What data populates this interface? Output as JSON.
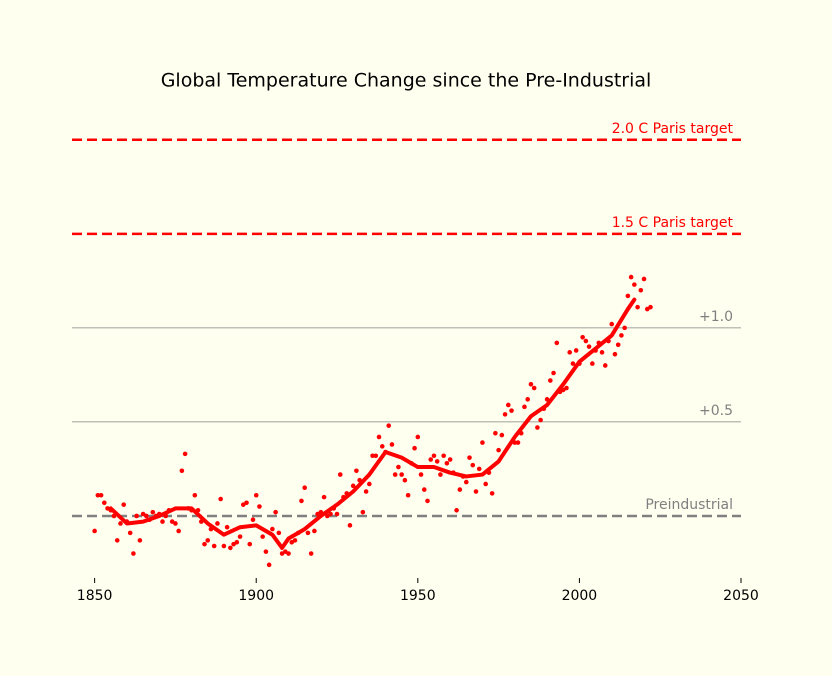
{
  "chart_data": {
    "type": "scatter",
    "title": "Global Temperature Change since the Pre-Industrial",
    "xlim": [
      1843,
      2050
    ],
    "ylim": [
      -0.33,
      2.1
    ],
    "xticks": [
      1850,
      1900,
      1950,
      2000,
      2050
    ],
    "reference_lines": [
      {
        "value": 0,
        "label": "Preindustrial",
        "color": "#808080",
        "dashed": true
      },
      {
        "value": 0.5,
        "label": "+0.5",
        "color": "#808080",
        "dashed": false
      },
      {
        "value": 1.0,
        "label": "+1.0",
        "color": "#808080",
        "dashed": false
      },
      {
        "value": 1.5,
        "label": "1.5 C Paris target",
        "color": "#ff0000",
        "dashed": true
      },
      {
        "value": 2.0,
        "label": "2.0 C Paris target",
        "color": "#ff0000",
        "dashed": true
      }
    ],
    "series": [
      {
        "type": "scatter",
        "color": "#ff0000",
        "x": [
          1850,
          1851,
          1852,
          1853,
          1854,
          1855,
          1856,
          1857,
          1858,
          1859,
          1860,
          1861,
          1862,
          1863,
          1864,
          1865,
          1866,
          1867,
          1868,
          1869,
          1870,
          1871,
          1872,
          1873,
          1874,
          1875,
          1876,
          1877,
          1878,
          1879,
          1880,
          1881,
          1882,
          1883,
          1884,
          1885,
          1886,
          1887,
          1888,
          1889,
          1890,
          1891,
          1892,
          1893,
          1894,
          1895,
          1896,
          1897,
          1898,
          1899,
          1900,
          1901,
          1902,
          1903,
          1904,
          1905,
          1906,
          1907,
          1908,
          1909,
          1910,
          1911,
          1912,
          1913,
          1914,
          1915,
          1916,
          1917,
          1918,
          1919,
          1920,
          1921,
          1922,
          1923,
          1924,
          1925,
          1926,
          1927,
          1928,
          1929,
          1930,
          1931,
          1932,
          1933,
          1934,
          1935,
          1936,
          1937,
          1938,
          1939,
          1940,
          1941,
          1942,
          1943,
          1944,
          1945,
          1946,
          1947,
          1948,
          1949,
          1950,
          1951,
          1952,
          1953,
          1954,
          1955,
          1956,
          1957,
          1958,
          1959,
          1960,
          1961,
          1962,
          1963,
          1964,
          1965,
          1966,
          1967,
          1968,
          1969,
          1970,
          1971,
          1972,
          1973,
          1974,
          1975,
          1976,
          1977,
          1978,
          1979,
          1980,
          1981,
          1982,
          1983,
          1984,
          1985,
          1986,
          1987,
          1988,
          1989,
          1990,
          1991,
          1992,
          1993,
          1994,
          1995,
          1996,
          1997,
          1998,
          1999,
          2000,
          2001,
          2002,
          2003,
          2004,
          2005,
          2006,
          2007,
          2008,
          2009,
          2010,
          2011,
          2012,
          2013,
          2014,
          2015,
          2016,
          2017,
          2018,
          2019,
          2020,
          2021,
          2022
        ],
        "values": [
          -0.08,
          0.11,
          0.11,
          0.07,
          0.04,
          0.03,
          0.0,
          -0.13,
          -0.04,
          0.06,
          -0.03,
          -0.09,
          -0.2,
          0.0,
          -0.13,
          0.01,
          0.0,
          -0.02,
          0.02,
          0.0,
          0.01,
          -0.03,
          0.0,
          0.03,
          -0.03,
          -0.04,
          -0.08,
          0.24,
          0.33,
          0.04,
          0.03,
          0.11,
          0.03,
          -0.03,
          -0.15,
          -0.13,
          -0.07,
          -0.16,
          -0.04,
          0.09,
          -0.16,
          -0.06,
          -0.17,
          -0.15,
          -0.14,
          -0.11,
          0.06,
          0.07,
          -0.15,
          -0.02,
          0.11,
          0.05,
          -0.11,
          -0.19,
          -0.26,
          -0.07,
          0.02,
          -0.09,
          -0.2,
          -0.19,
          -0.2,
          -0.14,
          -0.13,
          -0.09,
          0.08,
          0.15,
          -0.09,
          -0.2,
          -0.08,
          0.01,
          0.02,
          0.1,
          0.0,
          0.01,
          0.04,
          0.01,
          0.22,
          0.1,
          0.12,
          -0.05,
          0.16,
          0.24,
          0.19,
          0.02,
          0.13,
          0.17,
          0.32,
          0.32,
          0.42,
          0.37,
          0.34,
          0.48,
          0.38,
          0.22,
          0.26,
          0.22,
          0.19,
          0.11,
          0.28,
          0.36,
          0.42,
          0.22,
          0.14,
          0.08,
          0.3,
          0.32,
          0.29,
          0.22,
          0.32,
          0.28,
          0.3,
          0.23,
          0.03,
          0.14,
          0.21,
          0.18,
          0.31,
          0.27,
          0.13,
          0.25,
          0.39,
          0.17,
          0.23,
          0.12,
          0.44,
          0.35,
          0.43,
          0.54,
          0.59,
          0.56,
          0.39,
          0.39,
          0.44,
          0.58,
          0.62,
          0.7,
          0.68,
          0.47,
          0.51,
          0.57,
          0.62,
          0.72,
          0.76,
          0.92,
          0.66,
          0.67,
          0.68,
          0.87,
          0.81,
          0.88,
          0.81,
          0.95,
          0.93,
          0.9,
          0.81,
          0.88,
          0.92,
          0.87,
          0.8,
          0.93,
          1.02,
          0.86,
          0.91,
          0.96,
          1.0,
          1.17,
          1.27,
          1.23,
          1.11,
          1.2,
          1.26,
          1.1,
          1.11
        ]
      },
      {
        "type": "line",
        "color": "#ff0000",
        "x": [
          1855,
          1860,
          1865,
          1870,
          1875,
          1880,
          1885,
          1890,
          1895,
          1900,
          1905,
          1908,
          1910,
          1915,
          1920,
          1925,
          1930,
          1935,
          1940,
          1945,
          1950,
          1955,
          1960,
          1965,
          1970,
          1975,
          1980,
          1985,
          1990,
          1995,
          2000,
          2005,
          2010,
          2015,
          2017
        ],
        "values": [
          0.04,
          -0.04,
          -0.03,
          0.0,
          0.04,
          0.04,
          -0.04,
          -0.1,
          -0.06,
          -0.05,
          -0.1,
          -0.17,
          -0.12,
          -0.07,
          0.0,
          0.06,
          0.13,
          0.22,
          0.34,
          0.31,
          0.26,
          0.26,
          0.23,
          0.21,
          0.22,
          0.29,
          0.42,
          0.53,
          0.59,
          0.7,
          0.82,
          0.89,
          0.96,
          1.1,
          1.15
        ]
      }
    ]
  }
}
